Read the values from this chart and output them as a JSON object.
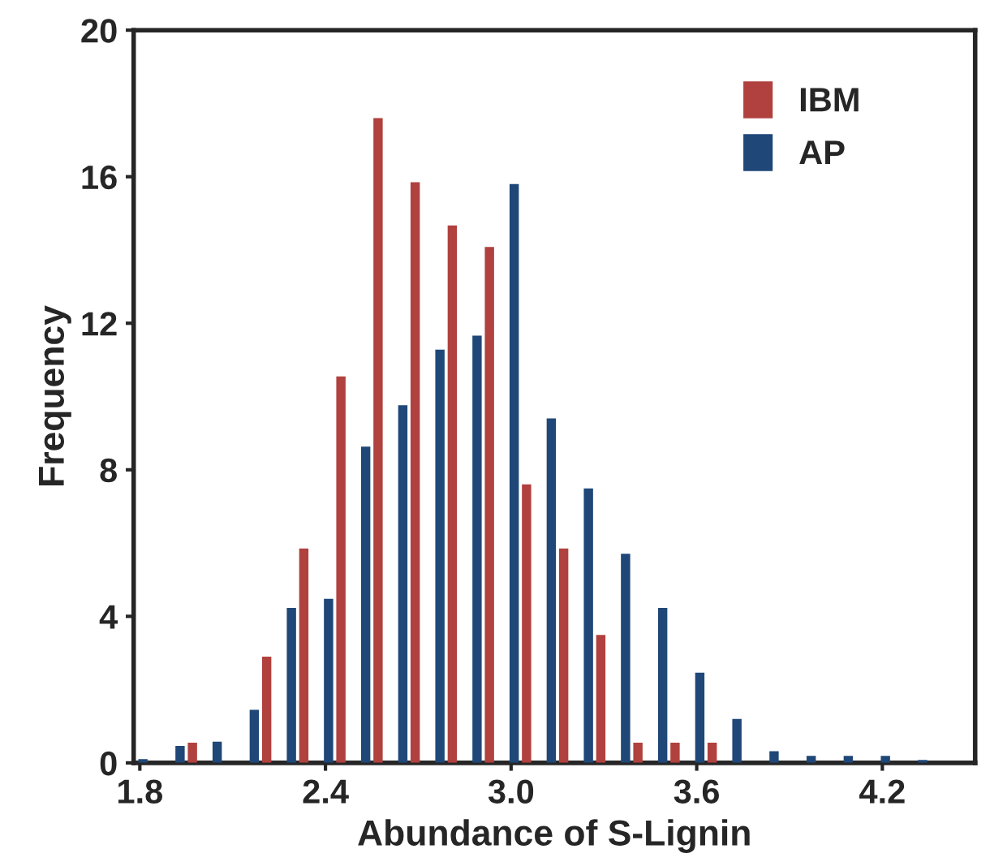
{
  "chart_data": {
    "type": "bar",
    "xlabel": "Abundance of S-Lignin",
    "ylabel": "Frequency",
    "xlim": [
      1.78,
      4.5
    ],
    "xticks": [
      {
        "value": 1.8,
        "label": "1.8"
      },
      2.4,
      {
        "value": 3.0,
        "label": "3.0"
      },
      3.6,
      4.2
    ],
    "ylim": [
      0,
      20
    ],
    "yticks": [
      0,
      4,
      8,
      12,
      16,
      20
    ],
    "grid": false,
    "legend": "top right",
    "series": [
      {
        "name": "IBM",
        "color": "#b0413e",
        "x": [
          1.97,
          2.09,
          2.21,
          2.33,
          2.45,
          2.57,
          2.69,
          2.81,
          2.93,
          3.05,
          3.17,
          3.29,
          3.41,
          3.53,
          3.65
        ],
        "values": [
          0.55,
          null,
          2.9,
          5.85,
          10.55,
          17.6,
          15.85,
          14.67,
          14.08,
          7.6,
          5.85,
          3.49,
          0.55,
          0.55,
          0.55
        ]
      },
      {
        "name": "AP",
        "color": "#1f4778",
        "x": [
          1.81,
          1.93,
          2.05,
          2.17,
          2.29,
          2.41,
          2.53,
          2.65,
          2.77,
          2.89,
          3.01,
          3.13,
          3.25,
          3.37,
          3.49,
          3.61,
          3.73,
          3.85,
          3.97,
          4.09,
          4.21,
          4.33
        ],
        "values": [
          0.1,
          0.46,
          0.58,
          1.45,
          4.23,
          4.48,
          8.63,
          9.76,
          11.28,
          11.66,
          15.8,
          9.4,
          7.49,
          5.71,
          4.23,
          2.46,
          1.2,
          0.32,
          0.19,
          0.19,
          0.19,
          0.08
        ]
      }
    ]
  }
}
